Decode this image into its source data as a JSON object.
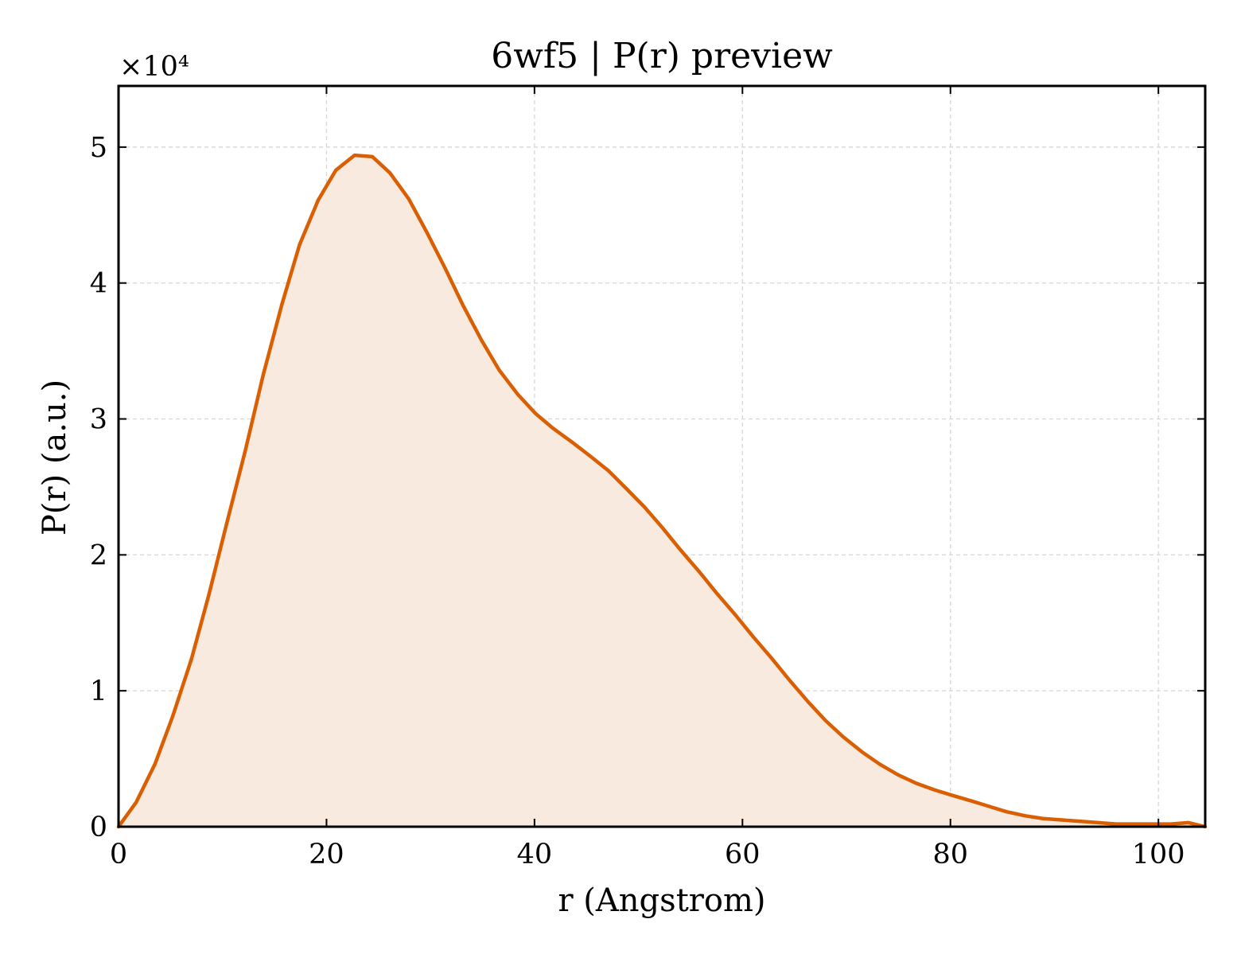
{
  "chart_data": {
    "type": "area",
    "title": "6wf5 | P(r) preview",
    "xlabel": "r (Angstrom)",
    "ylabel": "P(r) (a.u.)",
    "y_multiplier": "×10⁴",
    "xlim": [
      0,
      104.5
    ],
    "ylim": [
      0,
      5.45
    ],
    "x_ticks": [
      0,
      20,
      40,
      60,
      80,
      100
    ],
    "y_ticks": [
      0,
      1,
      2,
      3,
      4,
      5
    ],
    "grid": true,
    "line_color": "#d95f02",
    "fill_color": "#f9eadf",
    "x": [
      0,
      1.7,
      3.5,
      5.2,
      7.0,
      8.7,
      10.4,
      12.2,
      13.9,
      15.7,
      17.4,
      19.2,
      20.9,
      22.7,
      24.4,
      26.1,
      27.9,
      29.6,
      31.4,
      33.1,
      34.9,
      36.6,
      38.4,
      40.1,
      41.8,
      43.6,
      45.3,
      47.1,
      48.8,
      50.6,
      52.3,
      54.0,
      55.8,
      57.5,
      59.3,
      61.0,
      62.8,
      64.5,
      66.3,
      68.0,
      69.7,
      71.5,
      73.2,
      75.0,
      76.7,
      78.5,
      80.2,
      82.0,
      83.7,
      85.4,
      87.2,
      88.9,
      90.7,
      92.4,
      94.2,
      95.9,
      97.7,
      99.4,
      101.2,
      102.9,
      104.5
    ],
    "y": [
      0.0,
      0.18,
      0.46,
      0.81,
      1.23,
      1.71,
      2.23,
      2.77,
      3.32,
      3.84,
      4.28,
      4.61,
      4.83,
      4.94,
      4.93,
      4.81,
      4.62,
      4.38,
      4.11,
      3.84,
      3.58,
      3.36,
      3.18,
      3.04,
      2.93,
      2.83,
      2.73,
      2.62,
      2.49,
      2.35,
      2.2,
      2.04,
      1.88,
      1.72,
      1.56,
      1.4,
      1.24,
      1.08,
      0.92,
      0.78,
      0.66,
      0.55,
      0.46,
      0.38,
      0.32,
      0.27,
      0.23,
      0.19,
      0.15,
      0.11,
      0.08,
      0.06,
      0.05,
      0.04,
      0.03,
      0.02,
      0.02,
      0.02,
      0.02,
      0.03,
      0.0
    ]
  }
}
